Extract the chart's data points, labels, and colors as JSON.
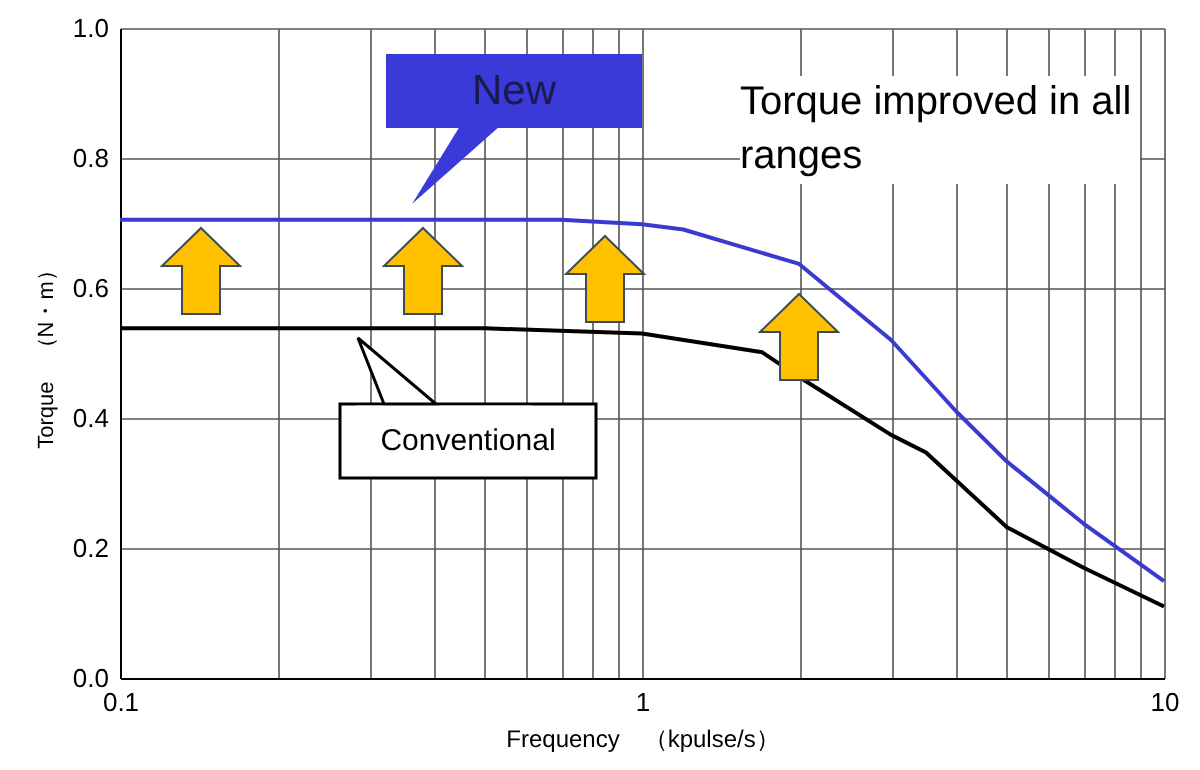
{
  "chart_data": {
    "type": "line",
    "xlabel": "Frequency　（kpulse/s）",
    "ylabel": "Torque　（N・m）",
    "log": "x",
    "xlim": [
      0.1,
      10
    ],
    "xticks": [
      "0.1",
      {
        "value": 0.2,
        "label": null
      },
      {
        "value": 0.3,
        "label": null
      },
      {
        "value": 0.4,
        "label": null
      },
      {
        "value": 0.5,
        "label": null
      },
      {
        "value": 0.6,
        "label": null
      },
      {
        "value": 0.7,
        "label": null
      },
      {
        "value": 0.8,
        "label": null
      },
      {
        "value": 0.9,
        "label": null
      },
      1,
      {
        "value": 2,
        "label": null
      },
      {
        "value": 3,
        "label": null
      },
      {
        "value": 4,
        "label": null
      },
      {
        "value": 5,
        "label": null
      },
      {
        "value": 6,
        "label": null
      },
      {
        "value": 7,
        "label": null
      },
      {
        "value": 8,
        "label": null
      },
      {
        "value": 9,
        "label": null
      },
      10
    ],
    "ylim": [
      0,
      1
    ],
    "yticks": [
      {
        "value": 0,
        "label": "0.0"
      },
      {
        "value": 0.2,
        "label": "0.2"
      },
      {
        "value": 0.4,
        "label": "0.4"
      },
      {
        "value": 0.6,
        "label": "0.6"
      },
      {
        "value": 0.8,
        "label": "0.8"
      },
      {
        "value": 1,
        "label": "1.0"
      }
    ],
    "grid": true,
    "marker": "none",
    "line_style": "solid",
    "series": [
      {
        "name": "New",
        "color": "#3a3ad0",
        "x": [
          0.1,
          0.7,
          1,
          1.2,
          2,
          3,
          4,
          5,
          7,
          10
        ],
        "values": [
          0.705,
          0.705,
          0.698,
          0.69,
          0.637,
          0.52,
          0.41,
          0.333,
          0.238,
          0.149
        ]
      },
      {
        "name": "Conventional",
        "color": "#000000",
        "x": [
          0.1,
          0.5,
          1,
          1.7,
          2,
          3,
          3.5,
          5,
          7,
          10
        ],
        "values": [
          0.538,
          0.538,
          0.53,
          0.501,
          0.463,
          0.374,
          0.347,
          0.232,
          0.17,
          0.11
        ]
      }
    ],
    "annotations": [
      "Torque improved in all ranges"
    ]
  }
}
